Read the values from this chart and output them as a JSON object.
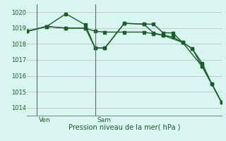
{
  "bg_color": "#d8f5f0",
  "grid_color": "#c8c8c8",
  "line_color": "#1a5c2a",
  "ylabel": "Pression niveau de la mer( hPa )",
  "ylim": [
    1013.5,
    1020.5
  ],
  "yticks": [
    1014,
    1015,
    1016,
    1017,
    1018,
    1019,
    1020
  ],
  "day_labels": [
    "Ven",
    "Sam"
  ],
  "day_positions": [
    0.5,
    3.5
  ],
  "line1_x": [
    0,
    1,
    2,
    3,
    3.5,
    4,
    5,
    6,
    6.5,
    7,
    7.5,
    8,
    8.5,
    9,
    9.5,
    10
  ],
  "line1_y": [
    1018.8,
    1019.1,
    1019.9,
    1019.2,
    1017.75,
    1017.75,
    1019.3,
    1019.25,
    1019.25,
    1018.7,
    1018.7,
    1018.1,
    1017.7,
    1016.6,
    1015.5,
    1014.35
  ],
  "line2_x": [
    0,
    1,
    2,
    3,
    3.5,
    4,
    5,
    6,
    6.5,
    7,
    7.5,
    8,
    8.5,
    9,
    9.5,
    10
  ],
  "line2_y": [
    1018.8,
    1019.1,
    1019.0,
    1019.0,
    1018.8,
    1018.75,
    1018.75,
    1018.75,
    1018.65,
    1018.55,
    1018.45,
    1018.1,
    1017.7,
    1016.8,
    1015.5,
    1014.35
  ],
  "line3_x": [
    0,
    1,
    2,
    3,
    3.5,
    4,
    5,
    6,
    6.5,
    7,
    8,
    9,
    10
  ],
  "line3_y": [
    1018.8,
    1019.1,
    1019.0,
    1019.0,
    1017.75,
    1017.75,
    1019.3,
    1019.25,
    1018.7,
    1018.55,
    1018.1,
    1016.6,
    1014.35
  ],
  "vline_positions": [
    0.5,
    3.5
  ],
  "marker_size": 3
}
